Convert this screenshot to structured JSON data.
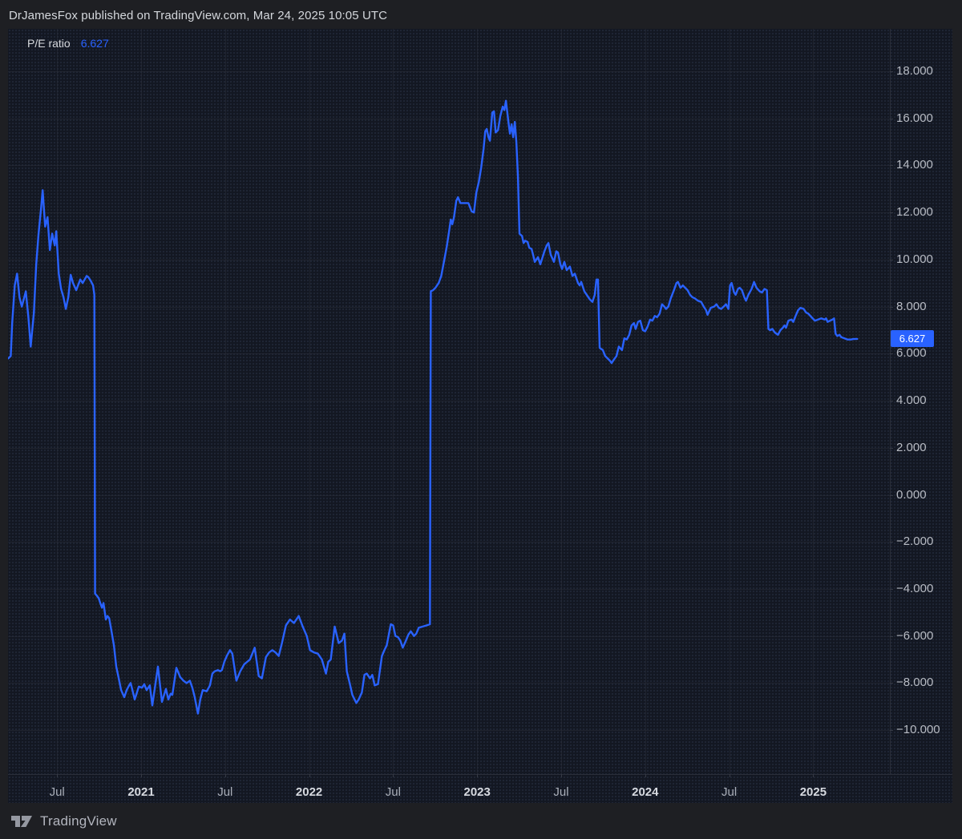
{
  "header": {
    "byline": "DrJamesFox published on TradingView.com, Mar 24, 2025 10:05 UTC"
  },
  "legend": {
    "series_name": "P/E ratio",
    "value": "6.627"
  },
  "price_label": {
    "value": "6.627",
    "color": "#2962FF"
  },
  "footer": {
    "brand": "TradingView"
  },
  "colors": {
    "accent": "#2962FF",
    "pane_bg": "#131722",
    "outer_bg": "#1E1F23",
    "grid": "#2A2E39",
    "axis_text": "#B8BCC4",
    "year_text": "#D7DAE0",
    "headline_text": "#D4D7DC",
    "badge_text": "#FFFFFF",
    "logo_gray": "#9598A1"
  },
  "chart_data": {
    "type": "line",
    "title": "P/E ratio",
    "last_value": 6.627,
    "line_color": "#2962FF",
    "grid": true,
    "legend_position": "top-left",
    "x_range": [
      2020.208,
      2025.456
    ],
    "y_range": [
      -11.87,
      19.805
    ],
    "x_axis": {
      "ticks": [
        {
          "t": 2020.5,
          "label": "Jul",
          "major": false
        },
        {
          "t": 2021.0,
          "label": "2021",
          "major": true
        },
        {
          "t": 2021.5,
          "label": "Jul",
          "major": false
        },
        {
          "t": 2022.0,
          "label": "2022",
          "major": true
        },
        {
          "t": 2022.5,
          "label": "Jul",
          "major": false
        },
        {
          "t": 2023.0,
          "label": "2023",
          "major": true
        },
        {
          "t": 2023.5,
          "label": "Jul",
          "major": false
        },
        {
          "t": 2024.0,
          "label": "2024",
          "major": true
        },
        {
          "t": 2024.5,
          "label": "Jul",
          "major": false
        },
        {
          "t": 2025.0,
          "label": "2025",
          "major": true
        }
      ]
    },
    "y_axis": {
      "ticks": [
        {
          "v": 18,
          "label": "18.000"
        },
        {
          "v": 16,
          "label": "16.000"
        },
        {
          "v": 14,
          "label": "14.000"
        },
        {
          "v": 12,
          "label": "12.000"
        },
        {
          "v": 10,
          "label": "10.000"
        },
        {
          "v": 8,
          "label": "8.000"
        },
        {
          "v": 6,
          "label": "6.000"
        },
        {
          "v": 4,
          "label": "4.000"
        },
        {
          "v": 2,
          "label": "2.000"
        },
        {
          "v": 0,
          "label": "0.000"
        },
        {
          "v": -2,
          "label": "−2.000"
        },
        {
          "v": -4,
          "label": "−4.000"
        },
        {
          "v": -6,
          "label": "−6.000"
        },
        {
          "v": -8,
          "label": "−8.000"
        },
        {
          "v": -10,
          "label": "−10.000"
        }
      ]
    },
    "points": [
      [
        2020.21,
        5.8
      ],
      [
        2020.224,
        5.9
      ],
      [
        2020.233,
        7.3
      ],
      [
        2020.248,
        8.9
      ],
      [
        2020.262,
        9.4
      ],
      [
        2020.276,
        8.4
      ],
      [
        2020.29,
        8.0
      ],
      [
        2020.305,
        8.4
      ],
      [
        2020.314,
        8.65
      ],
      [
        2020.329,
        7.55
      ],
      [
        2020.343,
        6.3
      ],
      [
        2020.362,
        7.75
      ],
      [
        2020.376,
        9.8
      ],
      [
        2020.39,
        11.1
      ],
      [
        2020.405,
        12.2
      ],
      [
        2020.414,
        12.95
      ],
      [
        2020.429,
        11.4
      ],
      [
        2020.443,
        11.8
      ],
      [
        2020.457,
        10.4
      ],
      [
        2020.471,
        11.1
      ],
      [
        2020.486,
        10.6
      ],
      [
        2020.495,
        11.2
      ],
      [
        2020.51,
        9.4
      ],
      [
        2020.524,
        8.75
      ],
      [
        2020.538,
        8.4
      ],
      [
        2020.552,
        7.9
      ],
      [
        2020.567,
        8.4
      ],
      [
        2020.581,
        9.35
      ],
      [
        2020.595,
        9.0
      ],
      [
        2020.614,
        8.7
      ],
      [
        2020.638,
        9.15
      ],
      [
        2020.652,
        9.0
      ],
      [
        2020.676,
        9.3
      ],
      [
        2020.686,
        9.25
      ],
      [
        2020.7,
        9.1
      ],
      [
        2020.714,
        8.9
      ],
      [
        2020.722,
        8.5
      ],
      [
        2020.726,
        -4.2
      ],
      [
        2020.738,
        -4.3
      ],
      [
        2020.748,
        -4.4
      ],
      [
        2020.757,
        -4.6
      ],
      [
        2020.767,
        -4.8
      ],
      [
        2020.776,
        -4.6
      ],
      [
        2020.79,
        -5.3
      ],
      [
        2020.8,
        -5.15
      ],
      [
        2020.81,
        -5.25
      ],
      [
        2020.824,
        -5.8
      ],
      [
        2020.838,
        -6.4
      ],
      [
        2020.852,
        -7.3
      ],
      [
        2020.867,
        -7.8
      ],
      [
        2020.881,
        -8.3
      ],
      [
        2020.9,
        -8.6
      ],
      [
        2020.914,
        -8.3
      ],
      [
        2020.929,
        -8.1
      ],
      [
        2020.938,
        -8.0
      ],
      [
        2020.952,
        -8.4
      ],
      [
        2020.962,
        -8.7
      ],
      [
        2020.971,
        -8.5
      ],
      [
        2020.986,
        -8.15
      ],
      [
        2021.005,
        -8.2
      ],
      [
        2021.019,
        -8.05
      ],
      [
        2021.033,
        -8.3
      ],
      [
        2021.052,
        -8.1
      ],
      [
        2021.067,
        -8.95
      ],
      [
        2021.1,
        -7.3
      ],
      [
        2021.124,
        -8.8
      ],
      [
        2021.148,
        -8.25
      ],
      [
        2021.162,
        -8.7
      ],
      [
        2021.176,
        -8.45
      ],
      [
        2021.186,
        -8.5
      ],
      [
        2021.21,
        -7.35
      ],
      [
        2021.233,
        -7.75
      ],
      [
        2021.252,
        -7.9
      ],
      [
        2021.271,
        -8.0
      ],
      [
        2021.29,
        -7.9
      ],
      [
        2021.305,
        -8.2
      ],
      [
        2021.319,
        -8.6
      ],
      [
        2021.338,
        -9.3
      ],
      [
        2021.352,
        -8.7
      ],
      [
        2021.367,
        -8.3
      ],
      [
        2021.39,
        -8.35
      ],
      [
        2021.41,
        -8.1
      ],
      [
        2021.424,
        -7.6
      ],
      [
        2021.438,
        -7.5
      ],
      [
        2021.457,
        -7.45
      ],
      [
        2021.471,
        -7.5
      ],
      [
        2021.481,
        -7.45
      ],
      [
        2021.495,
        -7.1
      ],
      [
        2021.51,
        -6.85
      ],
      [
        2021.529,
        -6.6
      ],
      [
        2021.543,
        -6.75
      ],
      [
        2021.567,
        -7.9
      ],
      [
        2021.59,
        -7.5
      ],
      [
        2021.614,
        -7.2
      ],
      [
        2021.648,
        -7.0
      ],
      [
        2021.676,
        -6.5
      ],
      [
        2021.7,
        -7.7
      ],
      [
        2021.719,
        -7.8
      ],
      [
        2021.743,
        -6.9
      ],
      [
        2021.762,
        -6.7
      ],
      [
        2021.781,
        -6.6
      ],
      [
        2021.8,
        -6.7
      ],
      [
        2021.819,
        -6.85
      ],
      [
        2021.838,
        -6.3
      ],
      [
        2021.862,
        -5.55
      ],
      [
        2021.886,
        -5.3
      ],
      [
        2021.91,
        -5.45
      ],
      [
        2021.938,
        -5.15
      ],
      [
        2021.962,
        -5.6
      ],
      [
        2021.986,
        -6.0
      ],
      [
        2022.005,
        -6.6
      ],
      [
        2022.029,
        -6.7
      ],
      [
        2022.052,
        -6.75
      ],
      [
        2022.076,
        -7.0
      ],
      [
        2022.1,
        -7.6
      ],
      [
        2022.114,
        -7.1
      ],
      [
        2022.129,
        -7.0
      ],
      [
        2022.152,
        -5.6
      ],
      [
        2022.176,
        -6.3
      ],
      [
        2022.195,
        -6.2
      ],
      [
        2022.21,
        -5.9
      ],
      [
        2022.224,
        -7.5
      ],
      [
        2022.243,
        -8.05
      ],
      [
        2022.257,
        -8.5
      ],
      [
        2022.281,
        -8.85
      ],
      [
        2022.295,
        -8.7
      ],
      [
        2022.314,
        -8.4
      ],
      [
        2022.329,
        -7.65
      ],
      [
        2022.343,
        -7.6
      ],
      [
        2022.362,
        -7.8
      ],
      [
        2022.376,
        -7.65
      ],
      [
        2022.39,
        -8.1
      ],
      [
        2022.41,
        -8.05
      ],
      [
        2022.433,
        -6.85
      ],
      [
        2022.448,
        -6.6
      ],
      [
        2022.462,
        -6.4
      ],
      [
        2022.486,
        -5.5
      ],
      [
        2022.5,
        -5.55
      ],
      [
        2022.514,
        -6.0
      ],
      [
        2022.529,
        -6.05
      ],
      [
        2022.543,
        -6.2
      ],
      [
        2022.557,
        -6.5
      ],
      [
        2022.576,
        -6.2
      ],
      [
        2022.59,
        -5.95
      ],
      [
        2022.605,
        -5.8
      ],
      [
        2022.624,
        -6.0
      ],
      [
        2022.638,
        -5.9
      ],
      [
        2022.652,
        -5.65
      ],
      [
        2022.676,
        -5.6
      ],
      [
        2022.7,
        -5.55
      ],
      [
        2022.719,
        -5.5
      ],
      [
        2022.724,
        8.65
      ],
      [
        2022.738,
        8.7
      ],
      [
        2022.752,
        8.8
      ],
      [
        2022.771,
        9.0
      ],
      [
        2022.786,
        9.3
      ],
      [
        2022.805,
        10.0
      ],
      [
        2022.819,
        10.55
      ],
      [
        2022.833,
        11.2
      ],
      [
        2022.843,
        11.7
      ],
      [
        2022.852,
        11.5
      ],
      [
        2022.862,
        11.8
      ],
      [
        2022.876,
        12.5
      ],
      [
        2022.886,
        12.65
      ],
      [
        2022.9,
        12.4
      ],
      [
        2022.924,
        12.4
      ],
      [
        2022.948,
        12.4
      ],
      [
        2022.967,
        12.05
      ],
      [
        2022.981,
        12.0
      ],
      [
        2022.995,
        12.85
      ],
      [
        2023.01,
        13.3
      ],
      [
        2023.024,
        13.9
      ],
      [
        2023.038,
        14.7
      ],
      [
        2023.048,
        15.45
      ],
      [
        2023.057,
        15.55
      ],
      [
        2023.067,
        15.2
      ],
      [
        2023.076,
        15.05
      ],
      [
        2023.09,
        16.25
      ],
      [
        2023.1,
        16.3
      ],
      [
        2023.11,
        15.4
      ],
      [
        2023.124,
        15.5
      ],
      [
        2023.138,
        16.1
      ],
      [
        2023.152,
        16.5
      ],
      [
        2023.162,
        16.35
      ],
      [
        2023.171,
        16.75
      ],
      [
        2023.186,
        15.85
      ],
      [
        2023.195,
        15.35
      ],
      [
        2023.205,
        15.75
      ],
      [
        2023.214,
        15.2
      ],
      [
        2023.224,
        15.85
      ],
      [
        2023.233,
        15.0
      ],
      [
        2023.243,
        13.5
      ],
      [
        2023.252,
        11.1
      ],
      [
        2023.267,
        11.0
      ],
      [
        2023.276,
        10.7
      ],
      [
        2023.286,
        10.8
      ],
      [
        2023.3,
        10.75
      ],
      [
        2023.31,
        10.5
      ],
      [
        2023.324,
        10.45
      ],
      [
        2023.333,
        10.2
      ],
      [
        2023.343,
        9.9
      ],
      [
        2023.362,
        10.1
      ],
      [
        2023.376,
        9.8
      ],
      [
        2023.4,
        10.35
      ],
      [
        2023.414,
        10.6
      ],
      [
        2023.424,
        10.7
      ],
      [
        2023.438,
        10.2
      ],
      [
        2023.457,
        9.9
      ],
      [
        2023.471,
        10.35
      ],
      [
        2023.481,
        10.3
      ],
      [
        2023.495,
        9.8
      ],
      [
        2023.505,
        9.6
      ],
      [
        2023.519,
        9.9
      ],
      [
        2023.533,
        9.55
      ],
      [
        2023.552,
        9.7
      ],
      [
        2023.567,
        9.3
      ],
      [
        2023.581,
        9.4
      ],
      [
        2023.6,
        9.0
      ],
      [
        2023.61,
        8.9
      ],
      [
        2023.619,
        9.05
      ],
      [
        2023.638,
        8.65
      ],
      [
        2023.652,
        8.5
      ],
      [
        2023.671,
        8.3
      ],
      [
        2023.686,
        8.2
      ],
      [
        2023.7,
        8.5
      ],
      [
        2023.71,
        9.15
      ],
      [
        2023.719,
        9.15
      ],
      [
        2023.729,
        6.25
      ],
      [
        2023.738,
        6.2
      ],
      [
        2023.748,
        6.15
      ],
      [
        2023.762,
        5.9
      ],
      [
        2023.776,
        5.8
      ],
      [
        2023.79,
        5.7
      ],
      [
        2023.8,
        5.6
      ],
      [
        2023.814,
        5.75
      ],
      [
        2023.829,
        5.9
      ],
      [
        2023.843,
        6.3
      ],
      [
        2023.862,
        6.15
      ],
      [
        2023.876,
        6.65
      ],
      [
        2023.89,
        6.6
      ],
      [
        2023.905,
        6.8
      ],
      [
        2023.919,
        7.2
      ],
      [
        2023.933,
        7.3
      ],
      [
        2023.943,
        7.05
      ],
      [
        2023.957,
        7.35
      ],
      [
        2023.971,
        7.4
      ],
      [
        2023.986,
        7.0
      ],
      [
        2024.0,
        6.95
      ],
      [
        2024.014,
        7.15
      ],
      [
        2024.029,
        7.45
      ],
      [
        2024.043,
        7.4
      ],
      [
        2024.057,
        7.6
      ],
      [
        2024.071,
        7.55
      ],
      [
        2024.086,
        7.7
      ],
      [
        2024.1,
        8.1
      ],
      [
        2024.114,
        8.0
      ],
      [
        2024.124,
        7.9
      ],
      [
        2024.138,
        8.0
      ],
      [
        2024.152,
        8.35
      ],
      [
        2024.171,
        8.7
      ],
      [
        2024.186,
        9.0
      ],
      [
        2024.195,
        9.05
      ],
      [
        2024.21,
        8.8
      ],
      [
        2024.224,
        8.9
      ],
      [
        2024.238,
        8.8
      ],
      [
        2024.252,
        8.7
      ],
      [
        2024.267,
        8.5
      ],
      [
        2024.281,
        8.4
      ],
      [
        2024.295,
        8.35
      ],
      [
        2024.314,
        8.25
      ],
      [
        2024.333,
        8.2
      ],
      [
        2024.348,
        8.0
      ],
      [
        2024.362,
        7.85
      ],
      [
        2024.371,
        7.65
      ],
      [
        2024.39,
        7.95
      ],
      [
        2024.41,
        8.0
      ],
      [
        2024.424,
        8.1
      ],
      [
        2024.438,
        7.95
      ],
      [
        2024.452,
        7.9
      ],
      [
        2024.467,
        8.0
      ],
      [
        2024.481,
        8.1
      ],
      [
        2024.495,
        7.9
      ],
      [
        2024.505,
        8.9
      ],
      [
        2024.514,
        9.0
      ],
      [
        2024.529,
        8.6
      ],
      [
        2024.538,
        8.5
      ],
      [
        2024.552,
        8.75
      ],
      [
        2024.562,
        8.8
      ],
      [
        2024.576,
        8.7
      ],
      [
        2024.59,
        8.4
      ],
      [
        2024.6,
        8.25
      ],
      [
        2024.614,
        8.5
      ],
      [
        2024.633,
        8.75
      ],
      [
        2024.648,
        9.05
      ],
      [
        2024.662,
        8.8
      ],
      [
        2024.681,
        8.65
      ],
      [
        2024.695,
        8.6
      ],
      [
        2024.71,
        8.75
      ],
      [
        2024.724,
        8.7
      ],
      [
        2024.733,
        7.05
      ],
      [
        2024.743,
        7.0
      ],
      [
        2024.757,
        7.05
      ],
      [
        2024.771,
        6.9
      ],
      [
        2024.79,
        6.8
      ],
      [
        2024.805,
        7.0
      ],
      [
        2024.819,
        7.1
      ],
      [
        2024.829,
        7.2
      ],
      [
        2024.838,
        7.1
      ],
      [
        2024.852,
        7.4
      ],
      [
        2024.871,
        7.45
      ],
      [
        2024.881,
        7.35
      ],
      [
        2024.895,
        7.6
      ],
      [
        2024.91,
        7.85
      ],
      [
        2024.924,
        7.95
      ],
      [
        2024.943,
        7.9
      ],
      [
        2024.957,
        7.75
      ],
      [
        2024.971,
        7.7
      ],
      [
        2024.99,
        7.55
      ],
      [
        2025.01,
        7.4
      ],
      [
        2025.029,
        7.45
      ],
      [
        2025.048,
        7.5
      ],
      [
        2025.067,
        7.45
      ],
      [
        2025.076,
        7.5
      ],
      [
        2025.086,
        7.35
      ],
      [
        2025.1,
        7.4
      ],
      [
        2025.114,
        7.45
      ],
      [
        2025.124,
        7.5
      ],
      [
        2025.133,
        6.85
      ],
      [
        2025.143,
        6.75
      ],
      [
        2025.157,
        6.8
      ],
      [
        2025.167,
        6.7
      ],
      [
        2025.186,
        6.65
      ],
      [
        2025.205,
        6.6
      ],
      [
        2025.224,
        6.6
      ],
      [
        2025.238,
        6.62
      ],
      [
        2025.262,
        6.627
      ]
    ]
  }
}
